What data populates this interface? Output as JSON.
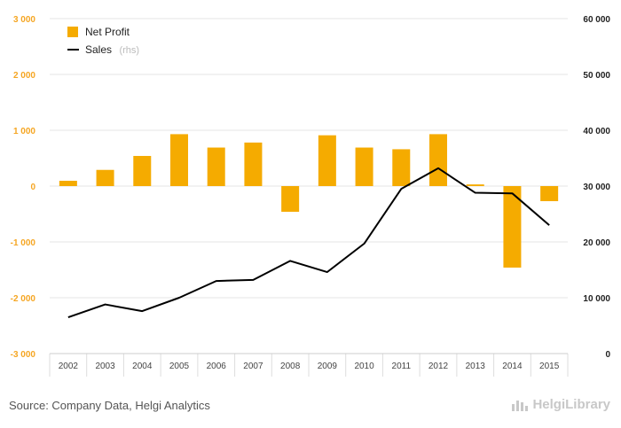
{
  "chart_data": {
    "type": "bar+line",
    "categories": [
      "2002",
      "2003",
      "2004",
      "2005",
      "2006",
      "2007",
      "2008",
      "2009",
      "2010",
      "2011",
      "2012",
      "2013",
      "2014",
      "2015"
    ],
    "series": [
      {
        "name": "Net Profit",
        "type": "bar",
        "axis": "left",
        "values": [
          95,
          290,
          540,
          930,
          690,
          780,
          -460,
          910,
          690,
          660,
          930,
          30,
          -1460,
          -270
        ],
        "color": "#f5ab00"
      },
      {
        "name": "Sales",
        "name_suffix": "(rhs)",
        "type": "line",
        "axis": "right",
        "values": [
          6500,
          8800,
          7600,
          10000,
          13000,
          13200,
          16600,
          14600,
          19700,
          29500,
          33200,
          28800,
          28700,
          23000
        ],
        "color": "#000000"
      }
    ],
    "left_axis": {
      "min": -3000,
      "max": 3000,
      "ticks": [
        "3 000",
        "2 000",
        "1 000",
        "0",
        "-1 000",
        "-2 000",
        "-3 000"
      ]
    },
    "right_axis": {
      "min": 0,
      "max": 60000,
      "ticks": [
        "60 000",
        "50 000",
        "40 000",
        "30 000",
        "20 000",
        "10 000",
        "0"
      ]
    },
    "legend_position": "top-left",
    "grid": true
  },
  "source": "Source: Company Data, Helgi Analytics",
  "brand": "HelgiLibrary"
}
